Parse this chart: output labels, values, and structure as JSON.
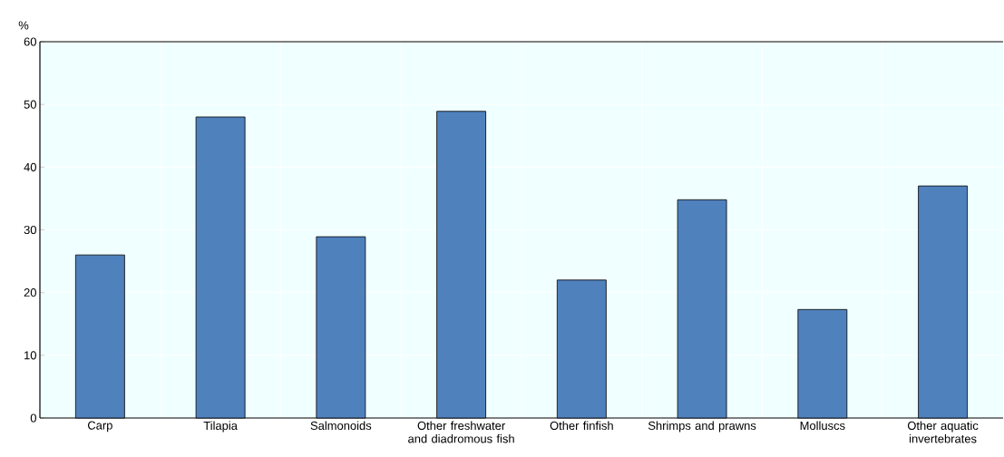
{
  "chart_data": {
    "type": "bar",
    "ylabel": "%",
    "categories": [
      "Carp",
      "Tilapia",
      "Salmonoids",
      "Other freshwater and diadromous fish",
      "Other finfish",
      "Shrimps and prawns",
      "Molluscs",
      "Other aquatic invertebrates"
    ],
    "values": [
      26.0,
      48.0,
      28.9,
      48.9,
      22.0,
      34.8,
      17.3,
      37.0
    ],
    "color": "#4f81bd",
    "ylim": [
      0,
      60
    ],
    "yticks": [
      0,
      10,
      20,
      30,
      40,
      50,
      60
    ],
    "grid": true
  }
}
